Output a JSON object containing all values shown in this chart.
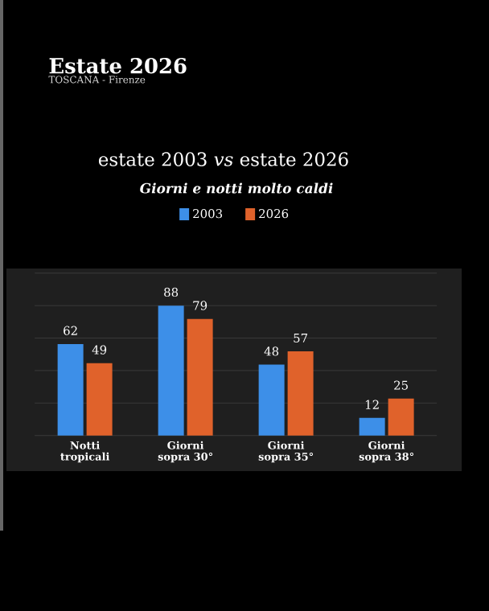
{
  "chart_data": {
    "type": "bar",
    "title": "estate 2003 *vs* estate 2026",
    "subtitle": "Giorni e notti molto caldi",
    "annotations": [
      "Estate 2026",
      "TOSCANA - Firenze"
    ],
    "categories": [
      "Notti tropicali",
      "Giorni sopra 30°",
      "Giorni sopra 35°",
      "Giorni sopra 38°"
    ],
    "series": [
      {
        "name": "2003",
        "color": "#3d8fe8",
        "values": [
          62,
          88,
          48,
          12
        ]
      },
      {
        "name": "2026",
        "color": "#e0622b",
        "values": [
          49,
          79,
          57,
          25
        ]
      }
    ],
    "ylim": [
      0,
      110
    ],
    "yticks": [
      {
        "value": 0,
        "label": null
      },
      {
        "value": 22,
        "label": null
      },
      {
        "value": 44,
        "label": null
      },
      {
        "value": 66,
        "label": null
      },
      {
        "value": 88,
        "label": null
      },
      {
        "value": 110,
        "label": null
      }
    ],
    "tick_labels": "x",
    "grid": "y",
    "legend": "top",
    "data_labels": true
  }
}
